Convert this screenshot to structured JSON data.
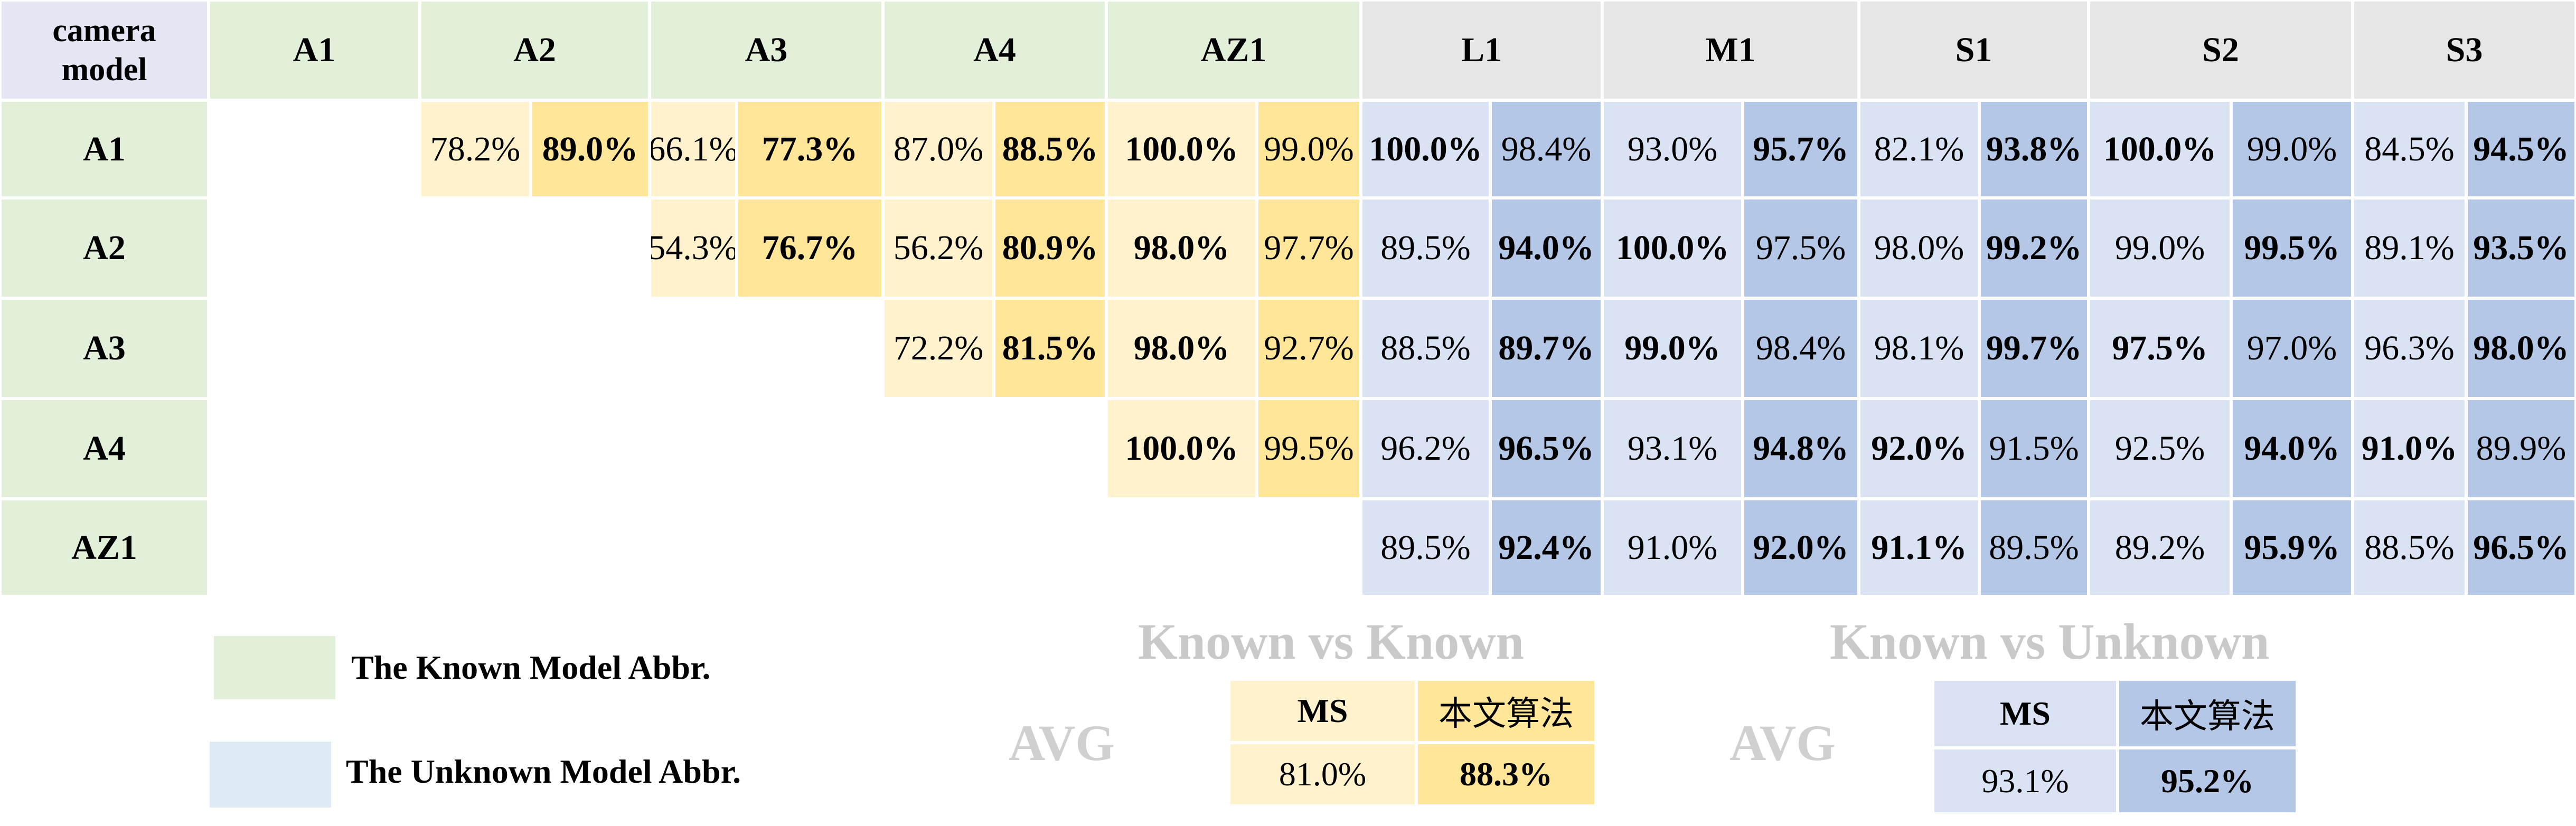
{
  "corner_label": [
    "camera",
    "model"
  ],
  "known_columns": [
    "A1",
    "A2",
    "A3",
    "A4",
    "AZ1"
  ],
  "unknown_columns": [
    "L1",
    "M1",
    "S1",
    "S2",
    "S3"
  ],
  "rows": [
    {
      "label": "A1",
      "values": [
        null,
        null,
        "78.2%",
        "89.0%",
        "66.1%",
        "77.3%",
        "87.0%",
        "88.5%",
        "100.0%",
        "99.0%",
        "100.0%",
        "98.4%",
        "93.0%",
        "95.7%",
        "82.1%",
        "93.8%",
        "100.0%",
        "99.0%",
        "84.5%",
        "94.5%"
      ],
      "bold": [
        false,
        false,
        false,
        true,
        false,
        true,
        false,
        true,
        true,
        false,
        true,
        false,
        false,
        true,
        false,
        true,
        true,
        false,
        false,
        true
      ]
    },
    {
      "label": "A2",
      "values": [
        null,
        null,
        null,
        null,
        "54.3%",
        "76.7%",
        "56.2%",
        "80.9%",
        "98.0%",
        "97.7%",
        "89.5%",
        "94.0%",
        "100.0%",
        "97.5%",
        "98.0%",
        "99.2%",
        "99.0%",
        "99.5%",
        "89.1%",
        "93.5%"
      ],
      "bold": [
        false,
        false,
        false,
        false,
        false,
        true,
        false,
        true,
        true,
        false,
        false,
        true,
        true,
        false,
        false,
        true,
        false,
        true,
        false,
        true
      ]
    },
    {
      "label": "A3",
      "values": [
        null,
        null,
        null,
        null,
        null,
        null,
        "72.2%",
        "81.5%",
        "98.0%",
        "92.7%",
        "88.5%",
        "89.7%",
        "99.0%",
        "98.4%",
        "98.1%",
        "99.7%",
        "97.5%",
        "97.0%",
        "96.3%",
        "98.0%"
      ],
      "bold": [
        false,
        false,
        false,
        false,
        false,
        false,
        false,
        true,
        true,
        false,
        false,
        true,
        true,
        false,
        false,
        true,
        true,
        false,
        false,
        true
      ]
    },
    {
      "label": "A4",
      "values": [
        null,
        null,
        null,
        null,
        null,
        null,
        null,
        null,
        "100.0%",
        "99.5%",
        "96.2%",
        "96.5%",
        "93.1%",
        "94.8%",
        "92.0%",
        "91.5%",
        "92.5%",
        "94.0%",
        "91.0%",
        "89.9%"
      ],
      "bold": [
        false,
        false,
        false,
        false,
        false,
        false,
        false,
        false,
        true,
        false,
        false,
        true,
        false,
        true,
        true,
        false,
        false,
        true,
        true,
        false
      ]
    },
    {
      "label": "AZ1",
      "values": [
        null,
        null,
        null,
        null,
        null,
        null,
        null,
        null,
        null,
        null,
        "89.5%",
        "92.4%",
        "91.0%",
        "92.0%",
        "91.1%",
        "89.5%",
        "89.2%",
        "95.9%",
        "88.5%",
        "96.5%"
      ],
      "bold": [
        false,
        false,
        false,
        false,
        false,
        false,
        false,
        false,
        false,
        false,
        false,
        true,
        false,
        true,
        true,
        false,
        false,
        true,
        false,
        true
      ]
    }
  ],
  "legend": {
    "known": "The Known Model Abbr.",
    "unknown": "The Unknown Model Abbr."
  },
  "summary_known": {
    "title": "Known vs Known",
    "avg_label": "AVG",
    "headers": [
      "MS",
      "本文算法"
    ],
    "values": [
      "81.0%",
      "88.3%"
    ],
    "bold": [
      false,
      true
    ]
  },
  "summary_unknown": {
    "title": "Known vs Unknown",
    "avg_label": "AVG",
    "headers": [
      "MS",
      "本文算法"
    ],
    "values": [
      "93.1%",
      "95.2%"
    ],
    "bold": [
      false,
      true
    ]
  },
  "colors": {
    "known_header": "#e2efd9",
    "unknown_header": "#e7e6e6",
    "corner": "#e4e6f4",
    "yellow_light": "#fff2cc",
    "yellow_dark": "#ffe699",
    "blue_light": "#dae3f3",
    "blue_dark": "#b4c7e7",
    "legend_blue": "#deebf7"
  }
}
